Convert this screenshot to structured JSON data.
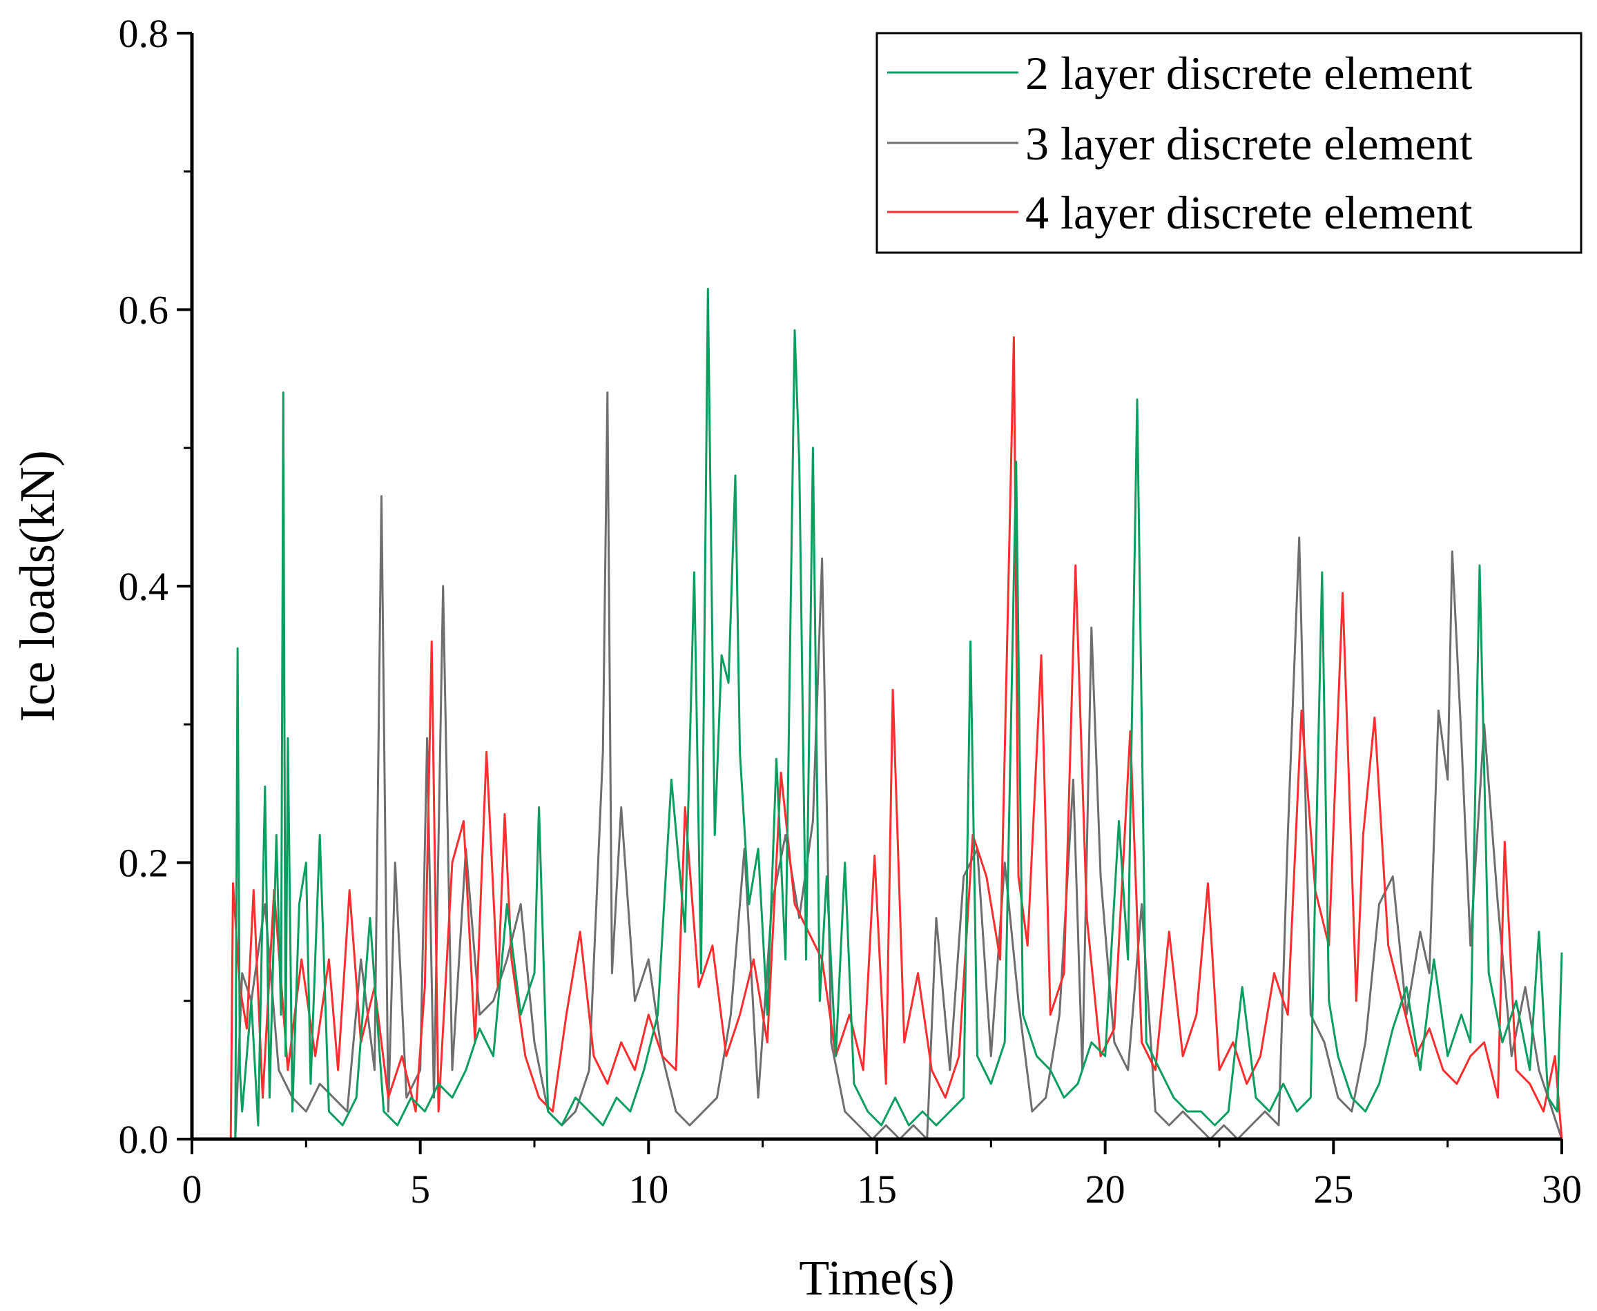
{
  "chart_data": {
    "type": "line",
    "title": "",
    "xlabel": "Time(s)",
    "ylabel": "Ice loads(kN)",
    "xlim": [
      0,
      30
    ],
    "ylim": [
      0,
      0.8
    ],
    "x_ticks": [
      0,
      5,
      10,
      15,
      20,
      25,
      30
    ],
    "x_tick_labels": [
      "0",
      "5",
      "10",
      "15",
      "20",
      "25",
      "30"
    ],
    "y_ticks": [
      0,
      0.2,
      0.4,
      0.6,
      0.8
    ],
    "y_tick_labels": [
      "0.0",
      "0.2",
      "0.4",
      "0.6",
      "0.8"
    ],
    "grid": false,
    "legend_position": "top-right",
    "series": [
      {
        "name": "2 layer discrete element",
        "color": "#0a9e5f",
        "x": [
          0,
          0.95,
          1.0,
          1.05,
          1.1,
          1.3,
          1.45,
          1.6,
          1.7,
          1.85,
          1.95,
          2.0,
          2.05,
          2.1,
          2.2,
          2.35,
          2.5,
          2.6,
          2.8,
          3.0,
          3.3,
          3.6,
          3.9,
          4.2,
          4.5,
          4.8,
          5.1,
          5.4,
          5.7,
          6.0,
          6.3,
          6.6,
          6.9,
          7.2,
          7.5,
          7.6,
          7.8,
          8.1,
          8.4,
          8.7,
          9.0,
          9.3,
          9.6,
          9.9,
          10.2,
          10.5,
          10.8,
          11.0,
          11.15,
          11.3,
          11.45,
          11.6,
          11.75,
          11.9,
          12.0,
          12.2,
          12.4,
          12.6,
          12.8,
          13.0,
          13.2,
          13.3,
          13.45,
          13.6,
          13.75,
          13.9,
          14.1,
          14.3,
          14.5,
          14.8,
          15.1,
          15.4,
          15.7,
          16.0,
          16.3,
          16.6,
          16.9,
          17.05,
          17.2,
          17.5,
          17.8,
          18.05,
          18.2,
          18.5,
          18.8,
          19.1,
          19.4,
          19.7,
          20.0,
          20.3,
          20.5,
          20.7,
          20.9,
          21.2,
          21.5,
          21.8,
          22.1,
          22.4,
          22.7,
          23.0,
          23.3,
          23.6,
          23.9,
          24.2,
          24.5,
          24.75,
          24.9,
          25.1,
          25.4,
          25.7,
          26.0,
          26.3,
          26.6,
          26.9,
          27.2,
          27.5,
          27.8,
          28.0,
          28.2,
          28.4,
          28.7,
          29.0,
          29.3,
          29.5,
          29.7,
          29.9,
          30.0
        ],
        "y": [
          0,
          0.0,
          0.355,
          0.05,
          0.02,
          0.1,
          0.01,
          0.255,
          0.03,
          0.22,
          0.09,
          0.54,
          0.06,
          0.29,
          0.02,
          0.17,
          0.2,
          0.04,
          0.22,
          0.02,
          0.01,
          0.03,
          0.16,
          0.02,
          0.01,
          0.03,
          0.02,
          0.04,
          0.03,
          0.05,
          0.08,
          0.06,
          0.17,
          0.09,
          0.12,
          0.24,
          0.02,
          0.01,
          0.03,
          0.02,
          0.01,
          0.03,
          0.02,
          0.05,
          0.09,
          0.26,
          0.15,
          0.41,
          0.12,
          0.615,
          0.22,
          0.35,
          0.33,
          0.48,
          0.28,
          0.17,
          0.21,
          0.09,
          0.275,
          0.13,
          0.585,
          0.49,
          0.13,
          0.5,
          0.1,
          0.19,
          0.06,
          0.2,
          0.04,
          0.02,
          0.01,
          0.03,
          0.01,
          0.02,
          0.01,
          0.02,
          0.03,
          0.36,
          0.06,
          0.04,
          0.07,
          0.49,
          0.09,
          0.06,
          0.05,
          0.03,
          0.04,
          0.07,
          0.06,
          0.23,
          0.13,
          0.535,
          0.07,
          0.05,
          0.03,
          0.02,
          0.02,
          0.01,
          0.02,
          0.11,
          0.03,
          0.02,
          0.04,
          0.02,
          0.03,
          0.41,
          0.1,
          0.06,
          0.03,
          0.02,
          0.04,
          0.08,
          0.11,
          0.05,
          0.13,
          0.06,
          0.09,
          0.07,
          0.415,
          0.12,
          0.07,
          0.1,
          0.05,
          0.15,
          0.03,
          0.02,
          0.135
        ]
      },
      {
        "name": "3 layer discrete element",
        "color": "#6e6e6e",
        "x": [
          0,
          0.95,
          1.1,
          1.3,
          1.6,
          1.9,
          2.2,
          2.5,
          2.8,
          3.1,
          3.4,
          3.7,
          4.0,
          4.15,
          4.3,
          4.45,
          4.7,
          5.0,
          5.15,
          5.3,
          5.5,
          5.7,
          6.0,
          6.3,
          6.6,
          6.9,
          7.2,
          7.5,
          7.8,
          8.1,
          8.4,
          8.7,
          9.0,
          9.1,
          9.2,
          9.4,
          9.7,
          10.0,
          10.3,
          10.6,
          10.9,
          11.2,
          11.5,
          11.8,
          12.1,
          12.4,
          12.7,
          13.0,
          13.3,
          13.6,
          13.8,
          14.0,
          14.3,
          14.6,
          14.9,
          15.2,
          15.5,
          15.8,
          16.1,
          16.3,
          16.6,
          16.9,
          17.2,
          17.5,
          17.8,
          18.1,
          18.4,
          18.7,
          19.0,
          19.3,
          19.5,
          19.7,
          19.9,
          20.2,
          20.5,
          20.8,
          21.1,
          21.4,
          21.7,
          22.0,
          22.3,
          22.6,
          22.9,
          23.2,
          23.5,
          23.8,
          24.0,
          24.25,
          24.5,
          24.8,
          25.1,
          25.4,
          25.7,
          26.0,
          26.3,
          26.6,
          26.9,
          27.1,
          27.3,
          27.5,
          27.6,
          27.8,
          28.0,
          28.3,
          28.6,
          28.9,
          29.2,
          29.5,
          29.8,
          30.0
        ],
        "y": [
          0,
          0.0,
          0.12,
          0.1,
          0.17,
          0.05,
          0.03,
          0.02,
          0.04,
          0.03,
          0.02,
          0.13,
          0.05,
          0.465,
          0.02,
          0.2,
          0.03,
          0.05,
          0.29,
          0.03,
          0.4,
          0.05,
          0.21,
          0.09,
          0.1,
          0.13,
          0.17,
          0.07,
          0.02,
          0.01,
          0.02,
          0.05,
          0.28,
          0.54,
          0.12,
          0.24,
          0.1,
          0.13,
          0.06,
          0.02,
          0.01,
          0.02,
          0.03,
          0.09,
          0.21,
          0.03,
          0.17,
          0.22,
          0.16,
          0.23,
          0.42,
          0.07,
          0.02,
          0.01,
          0.0,
          0.01,
          0.0,
          0.01,
          0.0,
          0.16,
          0.05,
          0.19,
          0.21,
          0.06,
          0.2,
          0.1,
          0.02,
          0.03,
          0.09,
          0.26,
          0.05,
          0.37,
          0.19,
          0.07,
          0.05,
          0.17,
          0.02,
          0.01,
          0.02,
          0.01,
          0.0,
          0.01,
          0.0,
          0.01,
          0.02,
          0.01,
          0.22,
          0.435,
          0.09,
          0.07,
          0.03,
          0.02,
          0.07,
          0.17,
          0.19,
          0.09,
          0.15,
          0.12,
          0.31,
          0.26,
          0.425,
          0.29,
          0.14,
          0.3,
          0.17,
          0.06,
          0.11,
          0.05,
          0.02,
          0.0
        ]
      },
      {
        "name": "4 layer discrete element",
        "color": "#ff2d2d",
        "x": [
          0,
          0.85,
          0.9,
          1.05,
          1.2,
          1.35,
          1.55,
          1.8,
          2.1,
          2.4,
          2.7,
          3.0,
          3.2,
          3.45,
          3.7,
          4.0,
          4.3,
          4.6,
          4.9,
          5.1,
          5.25,
          5.4,
          5.7,
          5.95,
          6.2,
          6.45,
          6.7,
          6.85,
          7.0,
          7.3,
          7.6,
          7.9,
          8.2,
          8.5,
          8.8,
          9.1,
          9.4,
          9.7,
          10.0,
          10.3,
          10.6,
          10.8,
          11.1,
          11.4,
          11.7,
          12.0,
          12.3,
          12.6,
          12.9,
          13.2,
          13.5,
          13.8,
          14.1,
          14.4,
          14.7,
          14.95,
          15.2,
          15.35,
          15.6,
          15.9,
          16.2,
          16.5,
          16.8,
          17.1,
          17.4,
          17.7,
          18.0,
          18.1,
          18.3,
          18.6,
          18.8,
          19.1,
          19.35,
          19.6,
          19.9,
          20.2,
          20.55,
          20.8,
          21.1,
          21.4,
          21.7,
          22.0,
          22.25,
          22.5,
          22.8,
          23.1,
          23.4,
          23.7,
          24.0,
          24.3,
          24.6,
          24.9,
          25.2,
          25.5,
          25.65,
          25.9,
          26.2,
          26.5,
          26.8,
          27.1,
          27.4,
          27.7,
          28.0,
          28.3,
          28.6,
          28.75,
          29.0,
          29.3,
          29.6,
          29.85,
          30.0
        ],
        "y": [
          0,
          0.0,
          0.185,
          0.11,
          0.08,
          0.18,
          0.03,
          0.18,
          0.05,
          0.13,
          0.06,
          0.13,
          0.05,
          0.18,
          0.07,
          0.11,
          0.03,
          0.06,
          0.02,
          0.11,
          0.36,
          0.02,
          0.2,
          0.23,
          0.07,
          0.28,
          0.11,
          0.235,
          0.13,
          0.06,
          0.03,
          0.02,
          0.09,
          0.15,
          0.06,
          0.04,
          0.07,
          0.05,
          0.09,
          0.06,
          0.05,
          0.24,
          0.11,
          0.14,
          0.06,
          0.09,
          0.13,
          0.07,
          0.265,
          0.17,
          0.15,
          0.13,
          0.06,
          0.09,
          0.05,
          0.205,
          0.04,
          0.325,
          0.07,
          0.12,
          0.05,
          0.03,
          0.06,
          0.22,
          0.19,
          0.13,
          0.58,
          0.19,
          0.14,
          0.35,
          0.09,
          0.12,
          0.415,
          0.16,
          0.06,
          0.08,
          0.295,
          0.07,
          0.05,
          0.15,
          0.06,
          0.09,
          0.185,
          0.05,
          0.07,
          0.04,
          0.06,
          0.12,
          0.09,
          0.31,
          0.18,
          0.14,
          0.395,
          0.1,
          0.22,
          0.305,
          0.14,
          0.1,
          0.06,
          0.08,
          0.05,
          0.04,
          0.06,
          0.07,
          0.03,
          0.215,
          0.05,
          0.04,
          0.02,
          0.06,
          0.0
        ]
      }
    ]
  }
}
